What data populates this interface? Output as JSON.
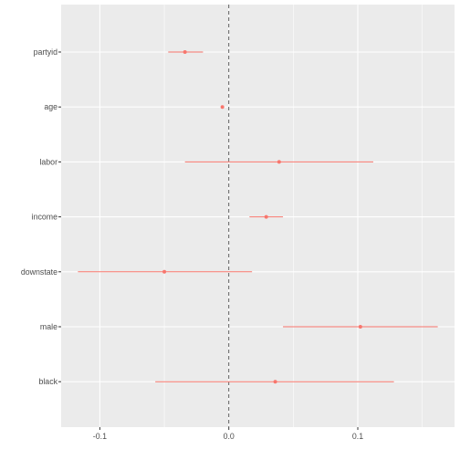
{
  "chart_data": {
    "type": "scatter",
    "variant": "coefficient-plot-with-intervals",
    "title": "",
    "xlabel": "",
    "ylabel": "",
    "xlim": [
      -0.13,
      0.175
    ],
    "xticks": [
      -0.1,
      0.0,
      0.1
    ],
    "xtick_labels": [
      "-0.1",
      "0.0",
      "0.1"
    ],
    "reference_line": {
      "x": 0.0,
      "style": "dashed",
      "color": "#4d4d4d"
    },
    "grid": true,
    "panel_background": "#ebebeb",
    "grid_color": "#ffffff",
    "point_color": "#f8766d",
    "categories": [
      "partyid",
      "age",
      "labor",
      "income",
      "downstate",
      "male",
      "black"
    ],
    "estimates": [
      {
        "term": "partyid",
        "estimate": -0.034,
        "low": -0.047,
        "high": -0.02
      },
      {
        "term": "age",
        "estimate": -0.005,
        "low": -0.006,
        "high": -0.004
      },
      {
        "term": "labor",
        "estimate": 0.039,
        "low": -0.034,
        "high": 0.112
      },
      {
        "term": "income",
        "estimate": 0.029,
        "low": 0.016,
        "high": 0.042
      },
      {
        "term": "downstate",
        "estimate": -0.05,
        "low": -0.117,
        "high": 0.018
      },
      {
        "term": "male",
        "estimate": 0.102,
        "low": 0.042,
        "high": 0.162
      },
      {
        "term": "black",
        "estimate": 0.036,
        "low": -0.057,
        "high": 0.128
      }
    ]
  }
}
